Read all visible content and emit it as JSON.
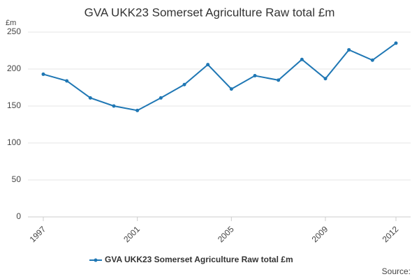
{
  "chart_data": {
    "type": "line",
    "title": "GVA UKK23 Somerset Agriculture Raw total £m",
    "y_label": "£m",
    "source_label": "Source:",
    "x": [
      1997,
      1998,
      1999,
      2000,
      2001,
      2002,
      2003,
      2004,
      2005,
      2006,
      2007,
      2008,
      2009,
      2010,
      2011,
      2012
    ],
    "series": [
      {
        "name": "GVA UKK23 Somerset Agriculture Raw total £m",
        "color": "#1f77b4",
        "values": [
          193,
          184,
          161,
          150,
          144,
          161,
          179,
          206,
          173,
          191,
          185,
          213,
          187,
          226,
          212,
          235
        ]
      }
    ],
    "xlim": [
      1997,
      2012
    ],
    "xticks": [
      1997,
      2001,
      2005,
      2009,
      2012
    ],
    "ylim": [
      0,
      250
    ],
    "yticks": [
      0,
      50,
      100,
      150,
      200,
      250
    ],
    "grid": true
  }
}
